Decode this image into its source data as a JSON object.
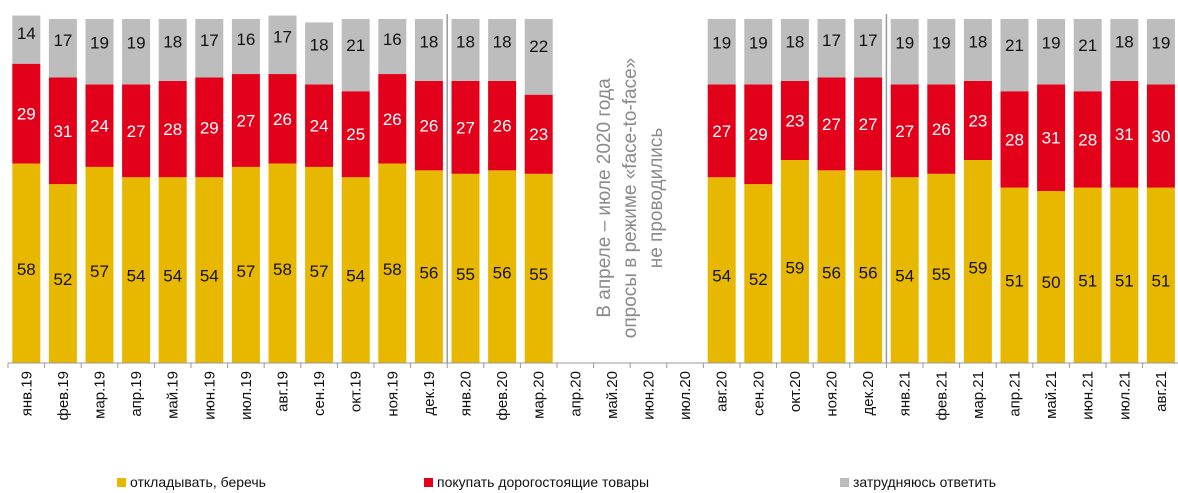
{
  "chart_data": {
    "type": "bar",
    "stacked": true,
    "categories": [
      "янв.19",
      "фев.19",
      "мар.19",
      "апр.19",
      "май.19",
      "июн.19",
      "июл.19",
      "авг.19",
      "сен.19",
      "окт.19",
      "ноя.19",
      "дек.19",
      "янв.20",
      "фев.20",
      "мар.20",
      "апр.20",
      "май.20",
      "июн.20",
      "июл.20",
      "авг.20",
      "сен.20",
      "окт.20",
      "ноя.20",
      "дек.20",
      "янв.21",
      "фев.21",
      "мар.21",
      "апр.21",
      "май.21",
      "июн.21",
      "июл.21",
      "авг.21"
    ],
    "series": [
      {
        "name": "откладывать, беречь",
        "color": "#E8B800",
        "values": [
          58,
          52,
          57,
          54,
          54,
          54,
          57,
          58,
          57,
          54,
          58,
          56,
          55,
          56,
          55,
          null,
          null,
          null,
          null,
          54,
          52,
          59,
          56,
          56,
          54,
          55,
          59,
          51,
          50,
          51,
          51,
          51
        ]
      },
      {
        "name": "покупать дорогостоящие товары",
        "color": "#E3001B",
        "values": [
          29,
          31,
          24,
          27,
          28,
          29,
          27,
          26,
          24,
          25,
          26,
          26,
          27,
          26,
          23,
          null,
          null,
          null,
          null,
          27,
          29,
          23,
          27,
          27,
          27,
          26,
          23,
          28,
          31,
          28,
          31,
          30
        ]
      },
      {
        "name": "затрудняюсь ответить",
        "color": "#BDBDBD",
        "values": [
          14,
          17,
          19,
          19,
          18,
          17,
          16,
          17,
          18,
          21,
          16,
          18,
          18,
          18,
          22,
          null,
          null,
          null,
          null,
          19,
          19,
          18,
          17,
          17,
          19,
          19,
          18,
          21,
          19,
          21,
          18,
          19
        ]
      }
    ],
    "annotation": [
      "В апреле – июле 2020 года",
      "опросы в режиме «face-to-face»",
      "не проводились"
    ],
    "ylim": [
      0,
      100
    ],
    "legend_position": "bottom"
  }
}
